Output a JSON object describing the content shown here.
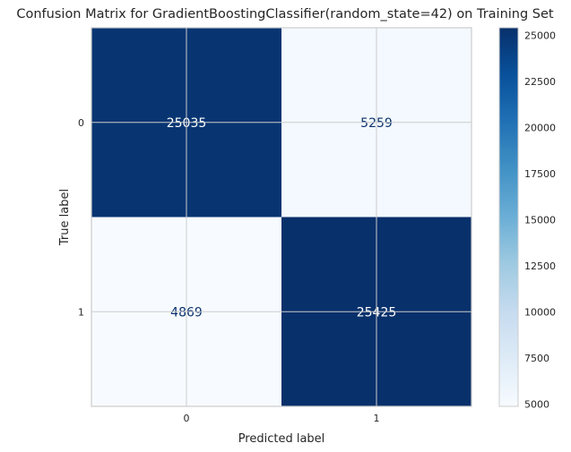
{
  "chart_data": {
    "type": "heatmap",
    "title": "Confusion Matrix for GradientBoostingClassifier(random_state=42) on Training Set",
    "xlabel": "Predicted label",
    "ylabel": "True label",
    "x_categories": [
      "0",
      "1"
    ],
    "y_categories": [
      "0",
      "1"
    ],
    "values": [
      [
        25035,
        5259
      ],
      [
        4869,
        25425
      ]
    ],
    "colormap": "Blues",
    "colorbar": {
      "min": 4869,
      "max": 25425,
      "ticks": [
        5000,
        7500,
        10000,
        12500,
        15000,
        17500,
        20000,
        22500,
        25000
      ]
    },
    "grid": true,
    "colors": {
      "low": "#f7fbff",
      "high": "#08306b",
      "dark_text": "#08306b",
      "light_text": "#ffffff",
      "grid": "#cccccc"
    }
  }
}
